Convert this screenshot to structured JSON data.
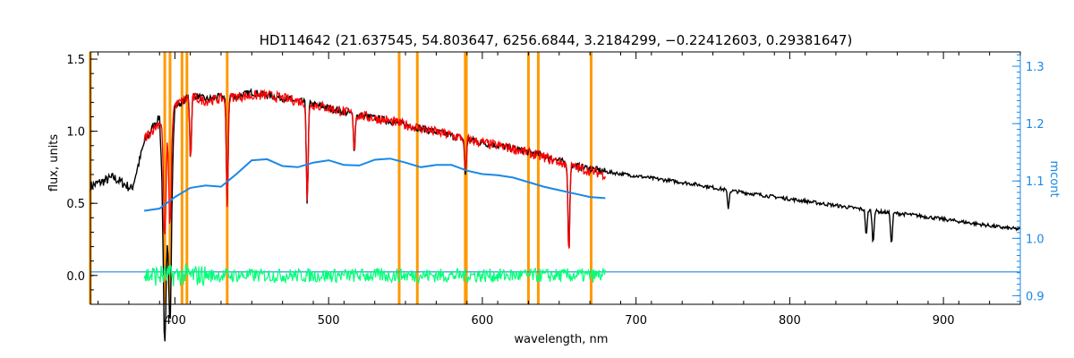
{
  "chart_data": {
    "type": "line",
    "title": "HD114642   (21.637545, 54.803647, 6256.6844, 3.2184299, −0.22412603, 0.29381647)",
    "xlabel": "wavelength, nm",
    "ylabel": "flux, units",
    "y2label": "mcont",
    "xlim": [
      345,
      950
    ],
    "ylim": [
      -0.2,
      1.55
    ],
    "y2lim": [
      0.885,
      1.325
    ],
    "x_ticks": [
      400,
      500,
      600,
      700,
      800,
      900
    ],
    "x_ticklabels": [
      "400",
      "500",
      "600",
      "700",
      "800",
      "900"
    ],
    "y_ticks": [
      0.0,
      0.5,
      1.0,
      1.5
    ],
    "y_ticklabels": [
      "0.0",
      "0.5",
      "1.0",
      "1.5"
    ],
    "y2_ticks": [
      0.9,
      1.0,
      1.1,
      1.2,
      1.3
    ],
    "y2_ticklabels": [
      "0.9",
      "1.0",
      "1.1",
      "1.2",
      "1.3"
    ],
    "grid": false,
    "legend": "none",
    "vertical_lines_x": [
      345,
      393.4,
      396.8,
      404.6,
      407.8,
      434.0,
      545.9,
      557.7,
      588.9,
      589.6,
      630.0,
      636.4,
      670.8
    ],
    "series": [
      {
        "role": "observed spectrum",
        "color": "#000000",
        "x": [
          345,
          360,
          372,
          380,
          385,
          390,
          393,
          397,
          400,
          405,
          410,
          420,
          430,
          440,
          450,
          460,
          480,
          500,
          520,
          540,
          560,
          580,
          600,
          620,
          640,
          660,
          680,
          700,
          720,
          740,
          760,
          780,
          800,
          820,
          840,
          860,
          880,
          900,
          920,
          940,
          950
        ],
        "y": [
          0.62,
          0.68,
          0.6,
          0.92,
          1.02,
          1.1,
          0.35,
          0.5,
          1.18,
          1.2,
          1.26,
          1.22,
          1.24,
          1.24,
          1.27,
          1.25,
          1.21,
          1.16,
          1.11,
          1.07,
          1.02,
          0.97,
          0.92,
          0.88,
          0.83,
          0.76,
          0.72,
          0.69,
          0.66,
          0.63,
          0.59,
          0.56,
          0.53,
          0.5,
          0.47,
          0.44,
          0.42,
          0.39,
          0.36,
          0.33,
          0.32
        ],
        "absorption_lines": [
          {
            "x": 393.4,
            "depth": 0.85
          },
          {
            "x": 396.8,
            "depth": 0.8
          },
          {
            "x": 410.2,
            "depth": 0.45
          },
          {
            "x": 434.0,
            "depth": 0.75
          },
          {
            "x": 486.1,
            "depth": 0.7
          },
          {
            "x": 516.7,
            "depth": 0.25
          },
          {
            "x": 589.0,
            "depth": 0.25
          },
          {
            "x": 656.3,
            "depth": 0.6
          },
          {
            "x": 760.0,
            "depth": 0.12
          },
          {
            "x": 849.8,
            "depth": 0.18
          },
          {
            "x": 854.2,
            "depth": 0.22
          },
          {
            "x": 866.2,
            "depth": 0.22
          }
        ]
      },
      {
        "role": "model fit",
        "color": "#ff0000",
        "x": [
          380,
          390,
          400,
          410,
          420,
          440,
          460,
          480,
          500,
          520,
          540,
          560,
          580,
          600,
          620,
          640,
          660,
          680
        ],
        "y": [
          0.95,
          1.06,
          1.18,
          1.24,
          1.21,
          1.24,
          1.25,
          1.21,
          1.16,
          1.11,
          1.07,
          1.02,
          0.97,
          0.92,
          0.88,
          0.82,
          0.75,
          0.7
        ]
      },
      {
        "role": "residuals",
        "color": "#00ff77",
        "x": [
          380,
          400,
          420,
          440,
          460,
          480,
          500,
          520,
          540,
          560,
          580,
          600,
          620,
          640,
          660,
          680
        ],
        "y": [
          0.0,
          0.0,
          0.0,
          0.0,
          0.0,
          0.0,
          0.0,
          0.0,
          0.0,
          0.0,
          0.0,
          0.0,
          0.0,
          0.0,
          0.0,
          0.0
        ],
        "amplitude": 0.07
      },
      {
        "role": "mcont (right axis)",
        "color": "#1a88e6",
        "axis": "right",
        "x": [
          380,
          390,
          400,
          410,
          420,
          430,
          440,
          450,
          460,
          470,
          480,
          490,
          500,
          510,
          520,
          530,
          540,
          550,
          560,
          570,
          580,
          590,
          600,
          610,
          620,
          630,
          640,
          650,
          660,
          670,
          680
        ],
        "y": [
          1.048,
          1.052,
          1.072,
          1.088,
          1.092,
          1.09,
          1.112,
          1.136,
          1.138,
          1.126,
          1.124,
          1.132,
          1.136,
          1.128,
          1.127,
          1.137,
          1.139,
          1.132,
          1.124,
          1.128,
          1.128,
          1.118,
          1.112,
          1.11,
          1.106,
          1.098,
          1.09,
          1.084,
          1.078,
          1.072,
          1.07
        ]
      },
      {
        "role": "baseline (right axis)",
        "color": "#1a88e6",
        "axis": "right",
        "x": [
          345,
          950
        ],
        "y": [
          0.9415,
          0.9415
        ]
      }
    ]
  }
}
